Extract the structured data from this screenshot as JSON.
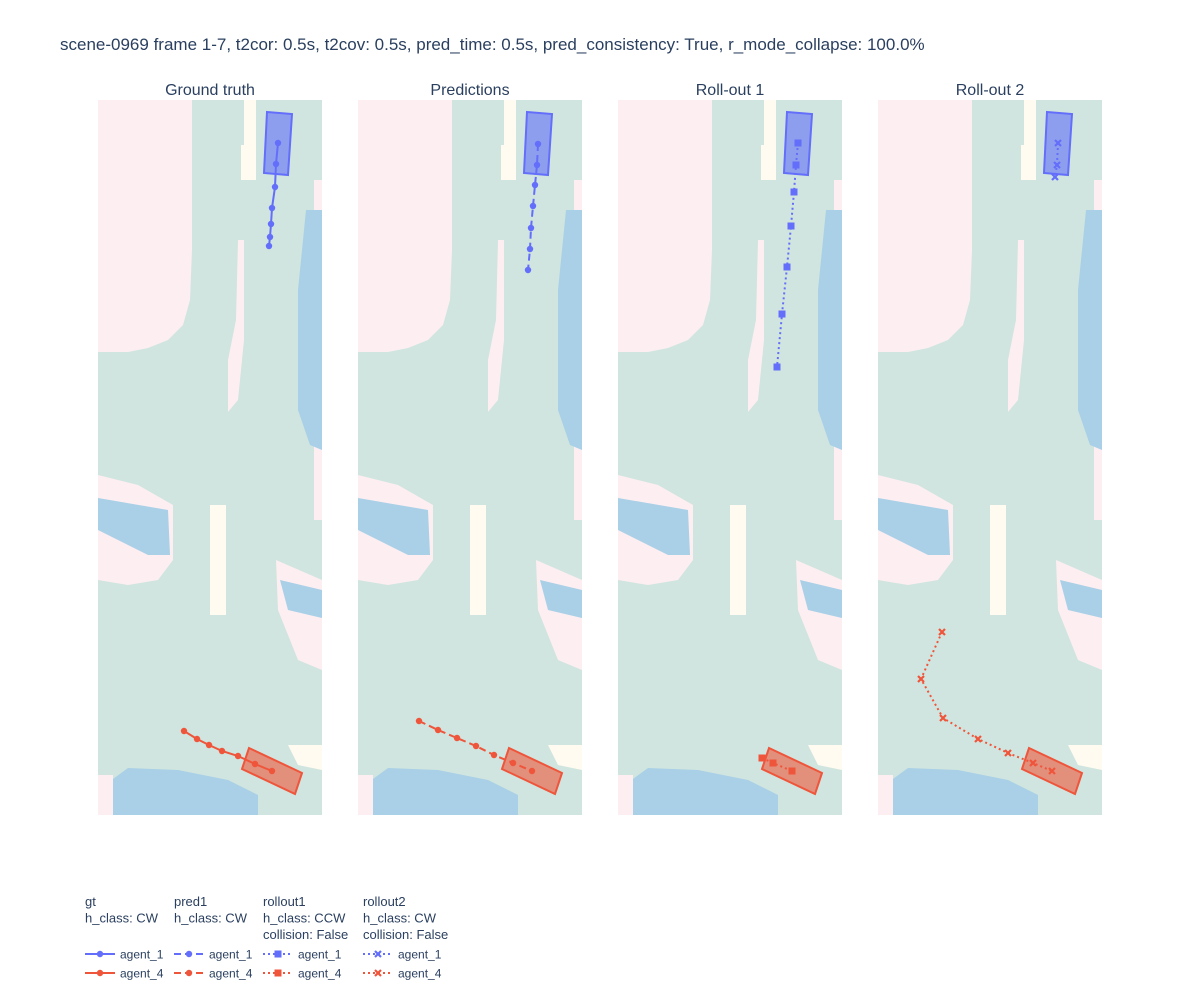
{
  "title": "scene-0969 frame 1-7, t2cor: 0.5s, t2cov: 0.5s, pred_time: 0.5s, pred_consistency: True, r_mode_collapse: 100.0%",
  "chart_data": [
    {
      "type": "line",
      "title": "Ground truth",
      "legend_title": [
        "gt",
        "h_class: CW"
      ],
      "xlim": [
        0,
        224
      ],
      "ylim": [
        0,
        715
      ],
      "series": [
        {
          "name": "agent_1",
          "color": "#636efa",
          "dash": "solid",
          "marker": "circle",
          "x": [
            180,
            178,
            177,
            174,
            173,
            172,
            171
          ],
          "values": [
            672,
            651,
            628,
            607,
            591,
            578,
            569
          ]
        },
        {
          "name": "agent_4",
          "color": "#ef553b",
          "dash": "solid",
          "marker": "circle",
          "x": [
            86,
            99,
            111,
            124,
            140,
            157,
            174
          ],
          "values": [
            84,
            76,
            70,
            64,
            59,
            51,
            44
          ]
        }
      ]
    },
    {
      "type": "line",
      "title": "Predictions",
      "legend_title": [
        "pred1",
        "h_class: CW"
      ],
      "xlim": [
        0,
        224
      ],
      "ylim": [
        0,
        715
      ],
      "series": [
        {
          "name": "agent_1",
          "color": "#636efa",
          "dash": "dash",
          "marker": "circle",
          "x": [
            180,
            179,
            177,
            175,
            173,
            172,
            170
          ],
          "values": [
            671,
            650,
            630,
            609,
            587,
            566,
            545
          ]
        },
        {
          "name": "agent_4",
          "color": "#ef553b",
          "dash": "dash",
          "marker": "circle",
          "x": [
            61,
            80,
            99,
            118,
            136,
            155,
            174
          ],
          "values": [
            94,
            85,
            77,
            69,
            60,
            52,
            44
          ]
        }
      ]
    },
    {
      "type": "line",
      "title": "Roll-out 1",
      "legend_title": [
        "rollout1",
        "h_class: CCW",
        "collision: False"
      ],
      "xlim": [
        0,
        224
      ],
      "ylim": [
        0,
        715
      ],
      "series": [
        {
          "name": "agent_1",
          "color": "#636efa",
          "dash": "dot",
          "marker": "square",
          "x": [
            180,
            178,
            176,
            173,
            169,
            164,
            159
          ],
          "values": [
            672,
            650,
            623,
            589,
            548,
            501,
            448
          ]
        },
        {
          "name": "agent_4",
          "color": "#ef553b",
          "dash": "dot",
          "marker": "square",
          "x": [
            144,
            155,
            174
          ],
          "values": [
            57,
            52,
            44
          ]
        }
      ]
    },
    {
      "type": "line",
      "title": "Roll-out 2",
      "legend_title": [
        "rollout2",
        "h_class: CW",
        "collision: False"
      ],
      "xlim": [
        0,
        224
      ],
      "ylim": [
        0,
        715
      ],
      "series": [
        {
          "name": "agent_1",
          "color": "#636efa",
          "dash": "dot",
          "marker": "x",
          "x": [
            180,
            179,
            177
          ],
          "values": [
            672,
            650,
            638
          ]
        },
        {
          "name": "agent_4",
          "color": "#ef553b",
          "dash": "dot",
          "marker": "x",
          "x": [
            64,
            43,
            65,
            100,
            130,
            155,
            174
          ],
          "values": [
            183,
            136,
            97,
            76,
            62,
            52,
            44
          ]
        }
      ]
    }
  ]
}
